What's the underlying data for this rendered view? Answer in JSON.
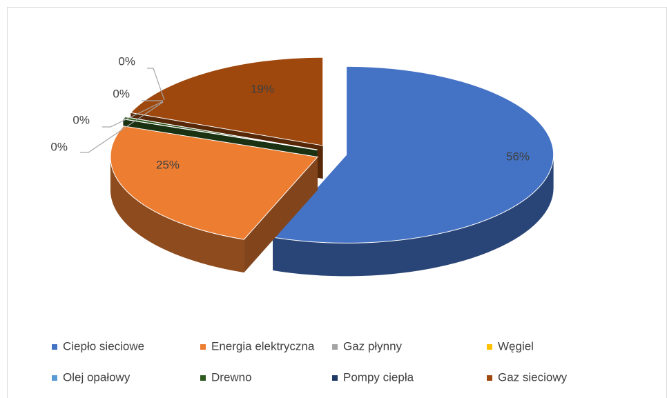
{
  "chart_data": {
    "type": "pie",
    "categories": [
      "Ciepło sieciowe",
      "Energia elektryczna",
      "Gaz płynny",
      "Węgiel",
      "Olej opałowy",
      "Drewno",
      "Pompy ciepła",
      "Gaz sieciowy"
    ],
    "values": [
      56,
      25,
      0,
      0,
      0,
      0.4,
      0,
      19
    ],
    "value_labels": [
      "56%",
      "25%",
      "0%",
      "0%",
      "0%",
      "0%",
      null,
      "19%"
    ],
    "colors": [
      "#4472c4",
      "#ed7d31",
      "#a5a5a5",
      "#ffc000",
      "#5b9bd5",
      "#2f5a1e",
      "#1f3864",
      "#9e480e"
    ],
    "legend": "bottom"
  }
}
